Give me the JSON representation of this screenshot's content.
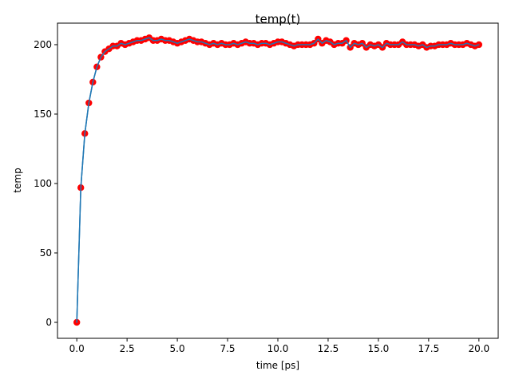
{
  "chart_data": {
    "type": "line",
    "title": "temp(t)",
    "xlabel": "time [ps]",
    "ylabel": "temp",
    "xlim": [
      -0.96,
      20.96
    ],
    "ylim": [
      -11.5,
      215.5
    ],
    "xticks": [
      0.0,
      2.5,
      5.0,
      7.5,
      10.0,
      12.5,
      15.0,
      17.5,
      20.0
    ],
    "xtick_labels": [
      "0.0",
      "2.5",
      "5.0",
      "7.5",
      "10.0",
      "12.5",
      "15.0",
      "17.5",
      "20.0"
    ],
    "yticks": [
      0,
      50,
      100,
      150,
      200
    ],
    "ytick_labels": [
      "0",
      "50",
      "100",
      "150",
      "200"
    ],
    "grid": false,
    "series": [
      {
        "style": "line",
        "color": "#1f77b4",
        "x": [
          0,
          0.2,
          0.4,
          0.6,
          0.8,
          1.0,
          1.2,
          1.4,
          1.6,
          1.8,
          2.0,
          2.2,
          2.4,
          2.6,
          2.8,
          3.0,
          3.2,
          3.4,
          3.6,
          3.8,
          4.0,
          4.2,
          4.4,
          4.6,
          4.8,
          5.0,
          5.2,
          5.4,
          5.6,
          5.8,
          6.0,
          6.2,
          6.4,
          6.6,
          6.8,
          7.0,
          7.2,
          7.4,
          7.6,
          7.8,
          8.0,
          8.2,
          8.4,
          8.6,
          8.8,
          9.0,
          9.2,
          9.4,
          9.6,
          9.8,
          10.0,
          10.2,
          10.4,
          10.6,
          10.8,
          11.0,
          11.2,
          11.4,
          11.6,
          11.8,
          12.0,
          12.2,
          12.4,
          12.6,
          12.8,
          13.0,
          13.2,
          13.4,
          13.6,
          13.8,
          14.0,
          14.2,
          14.4,
          14.6,
          14.8,
          15.0,
          15.2,
          15.4,
          15.6,
          15.8,
          16.0,
          16.2,
          16.4,
          16.6,
          16.8,
          17.0,
          17.2,
          17.4,
          17.6,
          17.8,
          18.0,
          18.2,
          18.4,
          18.6,
          18.8,
          19.0,
          19.2,
          19.4,
          19.6,
          19.8,
          20.0
        ],
        "y": [
          0,
          97,
          136,
          158,
          173,
          184,
          191,
          195,
          197,
          199,
          199,
          201,
          200,
          201,
          202,
          203,
          203,
          204,
          205,
          203,
          203,
          204,
          203,
          203,
          202,
          201,
          202,
          203,
          204,
          203,
          202,
          202,
          201,
          200,
          201,
          200,
          201,
          200,
          200,
          201,
          200,
          201,
          202,
          201,
          201,
          200,
          201,
          201,
          200,
          201,
          202,
          202,
          201,
          200,
          199,
          200,
          200,
          200,
          200,
          201,
          204,
          201,
          203,
          202,
          200,
          201,
          201,
          203,
          198,
          201,
          200,
          201,
          198,
          200,
          199,
          200,
          198,
          201,
          200,
          200,
          200,
          202,
          200,
          200,
          200,
          199,
          200,
          198,
          199,
          199,
          200,
          200,
          200,
          201,
          200,
          200,
          200,
          201,
          200,
          199,
          200
        ]
      },
      {
        "style": "scatter",
        "color": "#ff0000",
        "x": [
          0,
          0.2,
          0.4,
          0.6,
          0.8,
          1.0,
          1.2,
          1.4,
          1.6,
          1.8,
          2.0,
          2.2,
          2.4,
          2.6,
          2.8,
          3.0,
          3.2,
          3.4,
          3.6,
          3.8,
          4.0,
          4.2,
          4.4,
          4.6,
          4.8,
          5.0,
          5.2,
          5.4,
          5.6,
          5.8,
          6.0,
          6.2,
          6.4,
          6.6,
          6.8,
          7.0,
          7.2,
          7.4,
          7.6,
          7.8,
          8.0,
          8.2,
          8.4,
          8.6,
          8.8,
          9.0,
          9.2,
          9.4,
          9.6,
          9.8,
          10.0,
          10.2,
          10.4,
          10.6,
          10.8,
          11.0,
          11.2,
          11.4,
          11.6,
          11.8,
          12.0,
          12.2,
          12.4,
          12.6,
          12.8,
          13.0,
          13.2,
          13.4,
          13.6,
          13.8,
          14.0,
          14.2,
          14.4,
          14.6,
          14.8,
          15.0,
          15.2,
          15.4,
          15.6,
          15.8,
          16.0,
          16.2,
          16.4,
          16.6,
          16.8,
          17.0,
          17.2,
          17.4,
          17.6,
          17.8,
          18.0,
          18.2,
          18.4,
          18.6,
          18.8,
          19.0,
          19.2,
          19.4,
          19.6,
          19.8,
          20.0
        ],
        "y": [
          0,
          97,
          136,
          158,
          173,
          184,
          191,
          195,
          197,
          199,
          199,
          201,
          200,
          201,
          202,
          203,
          203,
          204,
          205,
          203,
          203,
          204,
          203,
          203,
          202,
          201,
          202,
          203,
          204,
          203,
          202,
          202,
          201,
          200,
          201,
          200,
          201,
          200,
          200,
          201,
          200,
          201,
          202,
          201,
          201,
          200,
          201,
          201,
          200,
          201,
          202,
          202,
          201,
          200,
          199,
          200,
          200,
          200,
          200,
          201,
          204,
          201,
          203,
          202,
          200,
          201,
          201,
          203,
          198,
          201,
          200,
          201,
          198,
          200,
          199,
          200,
          198,
          201,
          200,
          200,
          200,
          202,
          200,
          200,
          200,
          199,
          200,
          198,
          199,
          199,
          200,
          200,
          200,
          201,
          200,
          200,
          200,
          201,
          200,
          199,
          200
        ]
      }
    ]
  }
}
